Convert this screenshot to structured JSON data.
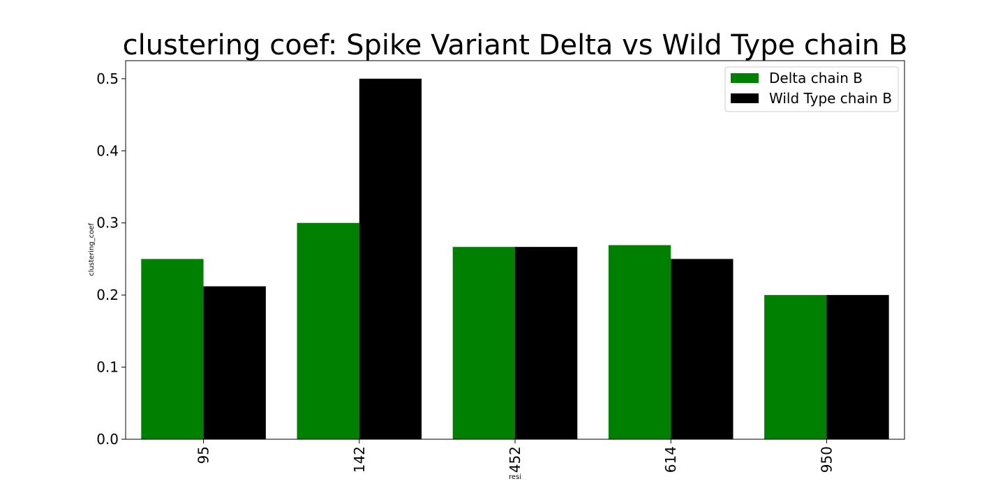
{
  "chart_data": {
    "type": "bar",
    "title": "clustering coef: Spike Variant Delta vs Wild Type chain B",
    "xlabel": "resi",
    "ylabel": "clustering_coef",
    "categories": [
      "95",
      "142",
      "452",
      "614",
      "950"
    ],
    "series": [
      {
        "name": "Delta chain B",
        "color": "#008000",
        "values": [
          0.25,
          0.3,
          0.2667,
          0.2692,
          0.2
        ]
      },
      {
        "name": "Wild Type chain B",
        "color": "#000000",
        "values": [
          0.2121,
          0.5,
          0.2667,
          0.25,
          0.2
        ]
      }
    ],
    "ylim": [
      0,
      0.525
    ],
    "yticks": [
      0.0,
      0.1,
      0.2,
      0.3,
      0.4,
      0.5
    ],
    "ytick_labels": [
      "0.0",
      "0.1",
      "0.2",
      "0.3",
      "0.4",
      "0.5"
    ],
    "xtick_rotation": "vertical",
    "legend": "top-right",
    "grid": false
  }
}
